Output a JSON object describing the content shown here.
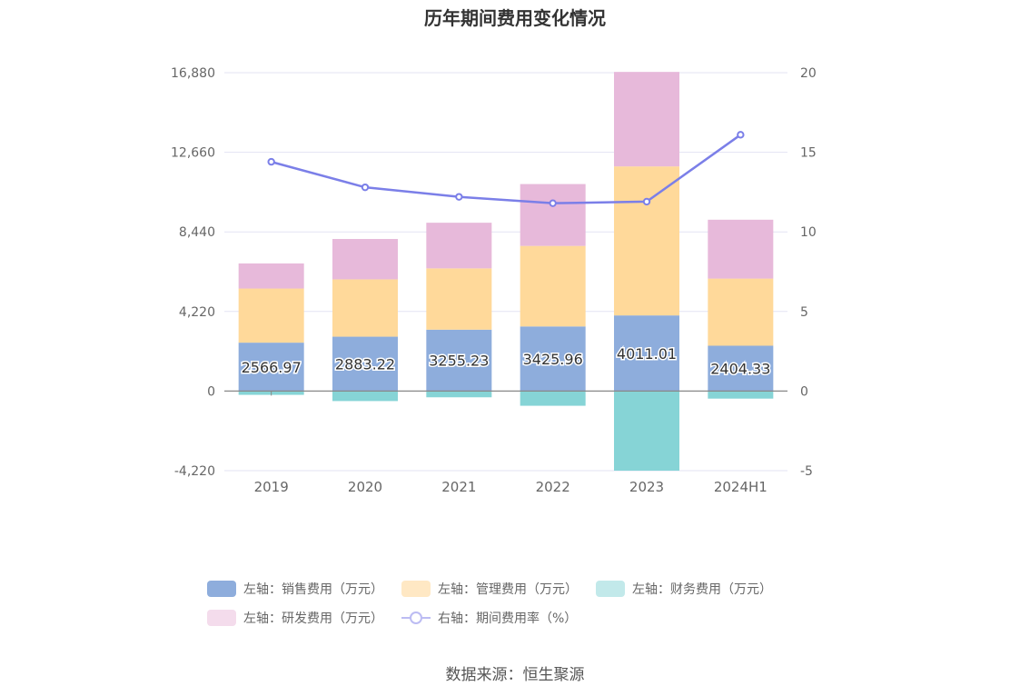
{
  "chart_data": {
    "type": "bar",
    "title": "历年期间费用变化情况",
    "categories": [
      "2019",
      "2020",
      "2021",
      "2022",
      "2023",
      "2024H1"
    ],
    "left_axis": {
      "ylim": [
        -4220,
        16880
      ],
      "ticks": [
        "16,880",
        "12,660",
        "8,440",
        "4,220",
        "0",
        "-4,220"
      ],
      "tick_values": [
        16880,
        12660,
        8440,
        4220,
        0,
        -4220
      ]
    },
    "right_axis": {
      "ylim": [
        -5,
        20
      ],
      "ticks": [
        "20",
        "15",
        "10",
        "5",
        "0",
        "-5"
      ],
      "tick_values": [
        20,
        15,
        10,
        5,
        0,
        -5
      ]
    },
    "series": [
      {
        "name": "左轴：销售费用（万元）",
        "axis": "left",
        "stack": "cost",
        "color": "#8eaddc",
        "values": [
          2566.97,
          2883.22,
          3255.23,
          3425.96,
          4011.01,
          2404.33
        ],
        "labels": [
          "2566.97",
          "2883.22",
          "3255.23",
          "3425.96",
          "4011.01",
          "2404.33"
        ]
      },
      {
        "name": "左轴：管理费用（万元）",
        "axis": "left",
        "stack": "cost",
        "color": "#ffd99a",
        "values": [
          2870,
          3040,
          3250,
          4270,
          7900,
          3560
        ]
      },
      {
        "name": "左轴：财务费用（万元）",
        "axis": "left",
        "stack": "cost",
        "color": "#86d4d6",
        "values": [
          -200,
          -530,
          -330,
          -780,
          -4220,
          -400
        ]
      },
      {
        "name": "左轴：研发费用（万元）",
        "axis": "left",
        "stack": "cost",
        "color": "#e7b9da",
        "values": [
          1330,
          2140,
          2420,
          3280,
          5010,
          3120
        ]
      },
      {
        "name": "右轴：期间费用率（%）",
        "axis": "right",
        "type": "line",
        "color": "#7b7fe8",
        "values": [
          14.4,
          12.8,
          12.2,
          11.8,
          11.9,
          16.1
        ]
      }
    ],
    "grid": true,
    "legend_position": "bottom"
  },
  "legend": {
    "rows": [
      [
        {
          "label": "左轴：销售费用（万元）",
          "color": "#8eaddc",
          "kind": "box"
        },
        {
          "label": "左轴：管理费用（万元）",
          "color": "#ffe8c4",
          "kind": "box"
        },
        {
          "label": "左轴：财务费用（万元）",
          "color": "#c2e9ea",
          "kind": "box"
        }
      ],
      [
        {
          "label": "左轴：研发费用（万元）",
          "color": "#f4dcec",
          "kind": "box"
        },
        {
          "label": "右轴：期间费用率（%）",
          "color": "#bcbcf3",
          "kind": "line"
        }
      ]
    ]
  },
  "source": "数据来源：恒生聚源"
}
